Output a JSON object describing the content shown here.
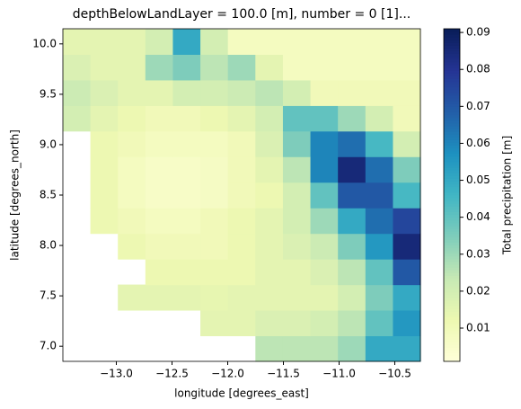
{
  "chart_data": {
    "type": "heatmap",
    "title": "depthBelowLandLayer = 100.0 [m], number = 0 [1]...",
    "xlabel": "longitude [degrees_east]",
    "ylabel": "latitude [degrees_north]",
    "colorbar_label": "Total precipitation [m]",
    "x": [
      -13.357,
      -13.11,
      -12.863,
      -12.616,
      -12.369,
      -12.122,
      -11.875,
      -11.628,
      -11.381,
      -11.134,
      -10.887,
      -10.64,
      -10.393
    ],
    "y": [
      6.977,
      7.231,
      7.485,
      7.738,
      7.992,
      8.246,
      8.5,
      8.754,
      9.008,
      9.262,
      9.515,
      9.769,
      10.023
    ],
    "z": [
      [
        null,
        null,
        null,
        null,
        null,
        null,
        null,
        0.025,
        0.025,
        0.025,
        0.03,
        0.05,
        0.05
      ],
      [
        null,
        null,
        null,
        null,
        null,
        0.015,
        0.015,
        0.018,
        0.018,
        0.02,
        0.025,
        0.04,
        0.055
      ],
      [
        null,
        null,
        0.015,
        0.015,
        0.015,
        0.014,
        0.015,
        0.015,
        0.015,
        0.015,
        0.02,
        0.035,
        0.05
      ],
      [
        null,
        null,
        null,
        0.012,
        0.012,
        0.012,
        0.012,
        0.015,
        0.015,
        0.018,
        0.025,
        0.04,
        0.07
      ],
      [
        null,
        null,
        0.012,
        0.01,
        0.01,
        0.01,
        0.012,
        0.015,
        0.018,
        0.022,
        0.035,
        0.055,
        0.085
      ],
      [
        null,
        0.012,
        0.01,
        0.008,
        0.008,
        0.01,
        0.012,
        0.015,
        0.02,
        0.03,
        0.05,
        0.065,
        0.075
      ],
      [
        null,
        0.012,
        0.008,
        0.006,
        0.006,
        0.007,
        0.01,
        0.012,
        0.02,
        0.04,
        0.07,
        0.07,
        0.045
      ],
      [
        null,
        0.012,
        0.008,
        0.006,
        0.006,
        0.007,
        0.01,
        0.015,
        0.025,
        0.06,
        0.085,
        0.065,
        0.035
      ],
      [
        null,
        0.012,
        0.01,
        0.008,
        0.008,
        0.008,
        0.01,
        0.018,
        0.035,
        0.06,
        0.065,
        0.045,
        0.02
      ],
      [
        0.02,
        0.015,
        0.012,
        0.01,
        0.01,
        0.012,
        0.015,
        0.02,
        0.04,
        0.04,
        0.03,
        0.02,
        0.01
      ],
      [
        0.022,
        0.018,
        0.015,
        0.015,
        0.02,
        0.02,
        0.022,
        0.025,
        0.02,
        0.01,
        0.01,
        0.01,
        0.01
      ],
      [
        0.018,
        0.015,
        0.015,
        0.03,
        0.035,
        0.025,
        0.03,
        0.015,
        0.008,
        0.008,
        0.008,
        0.008,
        0.008
      ],
      [
        0.015,
        0.015,
        0.015,
        0.02,
        0.05,
        0.02,
        0.008,
        0.008,
        0.008,
        0.008,
        0.008,
        0.008,
        0.008
      ]
    ],
    "xlim": [
      -13.48,
      -10.27
    ],
    "ylim": [
      6.85,
      10.15
    ],
    "xticks": [
      {
        "value": -13,
        "label": "−13.0"
      },
      {
        "value": -12.5,
        "label": "−12.5"
      },
      {
        "value": -12,
        "label": "−12.0"
      },
      {
        "value": -11.5,
        "label": "−11.5"
      },
      {
        "value": -11,
        "label": "−11.0"
      },
      {
        "value": -10.5,
        "label": "−10.5"
      }
    ],
    "yticks": [
      {
        "value": 7,
        "label": "7.0"
      },
      {
        "value": 7.5,
        "label": "7.5"
      },
      {
        "value": 8,
        "label": "8.0"
      },
      {
        "value": 8.5,
        "label": "8.5"
      },
      {
        "value": 9,
        "label": "9.0"
      },
      {
        "value": 9.5,
        "label": "9.5"
      },
      {
        "value": 10,
        "label": "10.0"
      }
    ],
    "clim": [
      0.001,
      0.091
    ],
    "cticks": [
      0.01,
      0.02,
      0.03,
      0.04,
      0.05,
      0.06,
      0.07,
      0.08,
      0.09
    ],
    "colormap": [
      "#ffffd9",
      "#edf8b1",
      "#c7e9b4",
      "#7fcdbb",
      "#41b6c4",
      "#1d91c0",
      "#225ea8",
      "#253494",
      "#081d58"
    ]
  }
}
